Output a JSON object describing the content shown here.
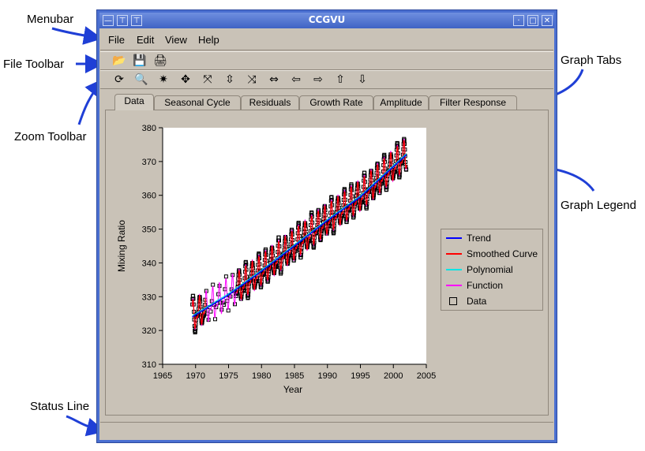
{
  "callouts": {
    "menubar": "Menubar",
    "file_toolbar": "File Toolbar",
    "zoom_toolbar": "Zoom Toolbar",
    "graph_tabs": "Graph Tabs",
    "graph_legend": "Graph Legend",
    "status_line": "Status Line"
  },
  "window": {
    "title": "CCGVU",
    "accent_color": "#3f63c4"
  },
  "menu": [
    "File",
    "Edit",
    "View",
    "Help"
  ],
  "file_toolbar": [
    {
      "icon": "open-folder-icon",
      "glyph": "📂"
    },
    {
      "icon": "save-icon",
      "glyph": "💾"
    },
    {
      "icon": "print-icon",
      "glyph": "🖨"
    }
  ],
  "zoom_toolbar": [
    {
      "icon": "refresh-icon",
      "glyph": "⟳"
    },
    {
      "icon": "zoom-in-icon",
      "glyph": "🔍"
    },
    {
      "icon": "zoom-center-icon",
      "glyph": "✷"
    },
    {
      "icon": "move-icon",
      "glyph": "✥"
    },
    {
      "icon": "expand-x-icon",
      "glyph": "⤧"
    },
    {
      "icon": "expand-y-icon",
      "glyph": "⇳"
    },
    {
      "icon": "shrink-x-icon",
      "glyph": "⤨"
    },
    {
      "icon": "stretch-horizontal-icon",
      "glyph": "⇔"
    },
    {
      "icon": "arrow-left-icon",
      "glyph": "⇦"
    },
    {
      "icon": "arrow-right-icon",
      "glyph": "⇨"
    },
    {
      "icon": "arrow-up-icon",
      "glyph": "⇧"
    },
    {
      "icon": "arrow-down-icon",
      "glyph": "⇩"
    }
  ],
  "tabs": [
    "Data",
    "Seasonal Cycle",
    "Residuals",
    "Growth Rate",
    "Amplitude",
    "Filter Response"
  ],
  "active_tab": 0,
  "legend": [
    {
      "label": "Trend",
      "color": "#0000ff",
      "style": "line"
    },
    {
      "label": "Smoothed Curve",
      "color": "#ff0000",
      "style": "line"
    },
    {
      "label": "Polynomial",
      "color": "#00e5e5",
      "style": "line"
    },
    {
      "label": "Function",
      "color": "#ff00ff",
      "style": "line"
    },
    {
      "label": "Data",
      "color": "#000000",
      "style": "box"
    }
  ],
  "status": "",
  "chart_data": {
    "type": "line",
    "xlabel": "Year",
    "ylabel": "Mixing Ratio",
    "xlim": [
      1965,
      2005
    ],
    "ylim": [
      310,
      380
    ],
    "xticks": [
      1965,
      1970,
      1975,
      1980,
      1985,
      1990,
      1995,
      2000,
      2005
    ],
    "yticks": [
      310,
      320,
      330,
      340,
      350,
      360,
      370,
      380
    ],
    "grid": false,
    "legend_position": "right",
    "trend": {
      "x": [
        1969.5,
        1975,
        1980,
        1985,
        1990,
        1995,
        2002
      ],
      "y": [
        324,
        330.5,
        337.5,
        345,
        352.5,
        359.5,
        372
      ]
    },
    "seasonal_amplitude": 3.5,
    "data_gap": [
      1971.5,
      1976.2
    ],
    "series": [
      {
        "name": "Trend",
        "color": "#0000ff"
      },
      {
        "name": "Smoothed Curve",
        "color": "#ff0000"
      },
      {
        "name": "Polynomial",
        "color": "#00e5e5"
      },
      {
        "name": "Function",
        "color": "#ff00ff"
      },
      {
        "name": "Data",
        "color": "#000000"
      }
    ]
  }
}
